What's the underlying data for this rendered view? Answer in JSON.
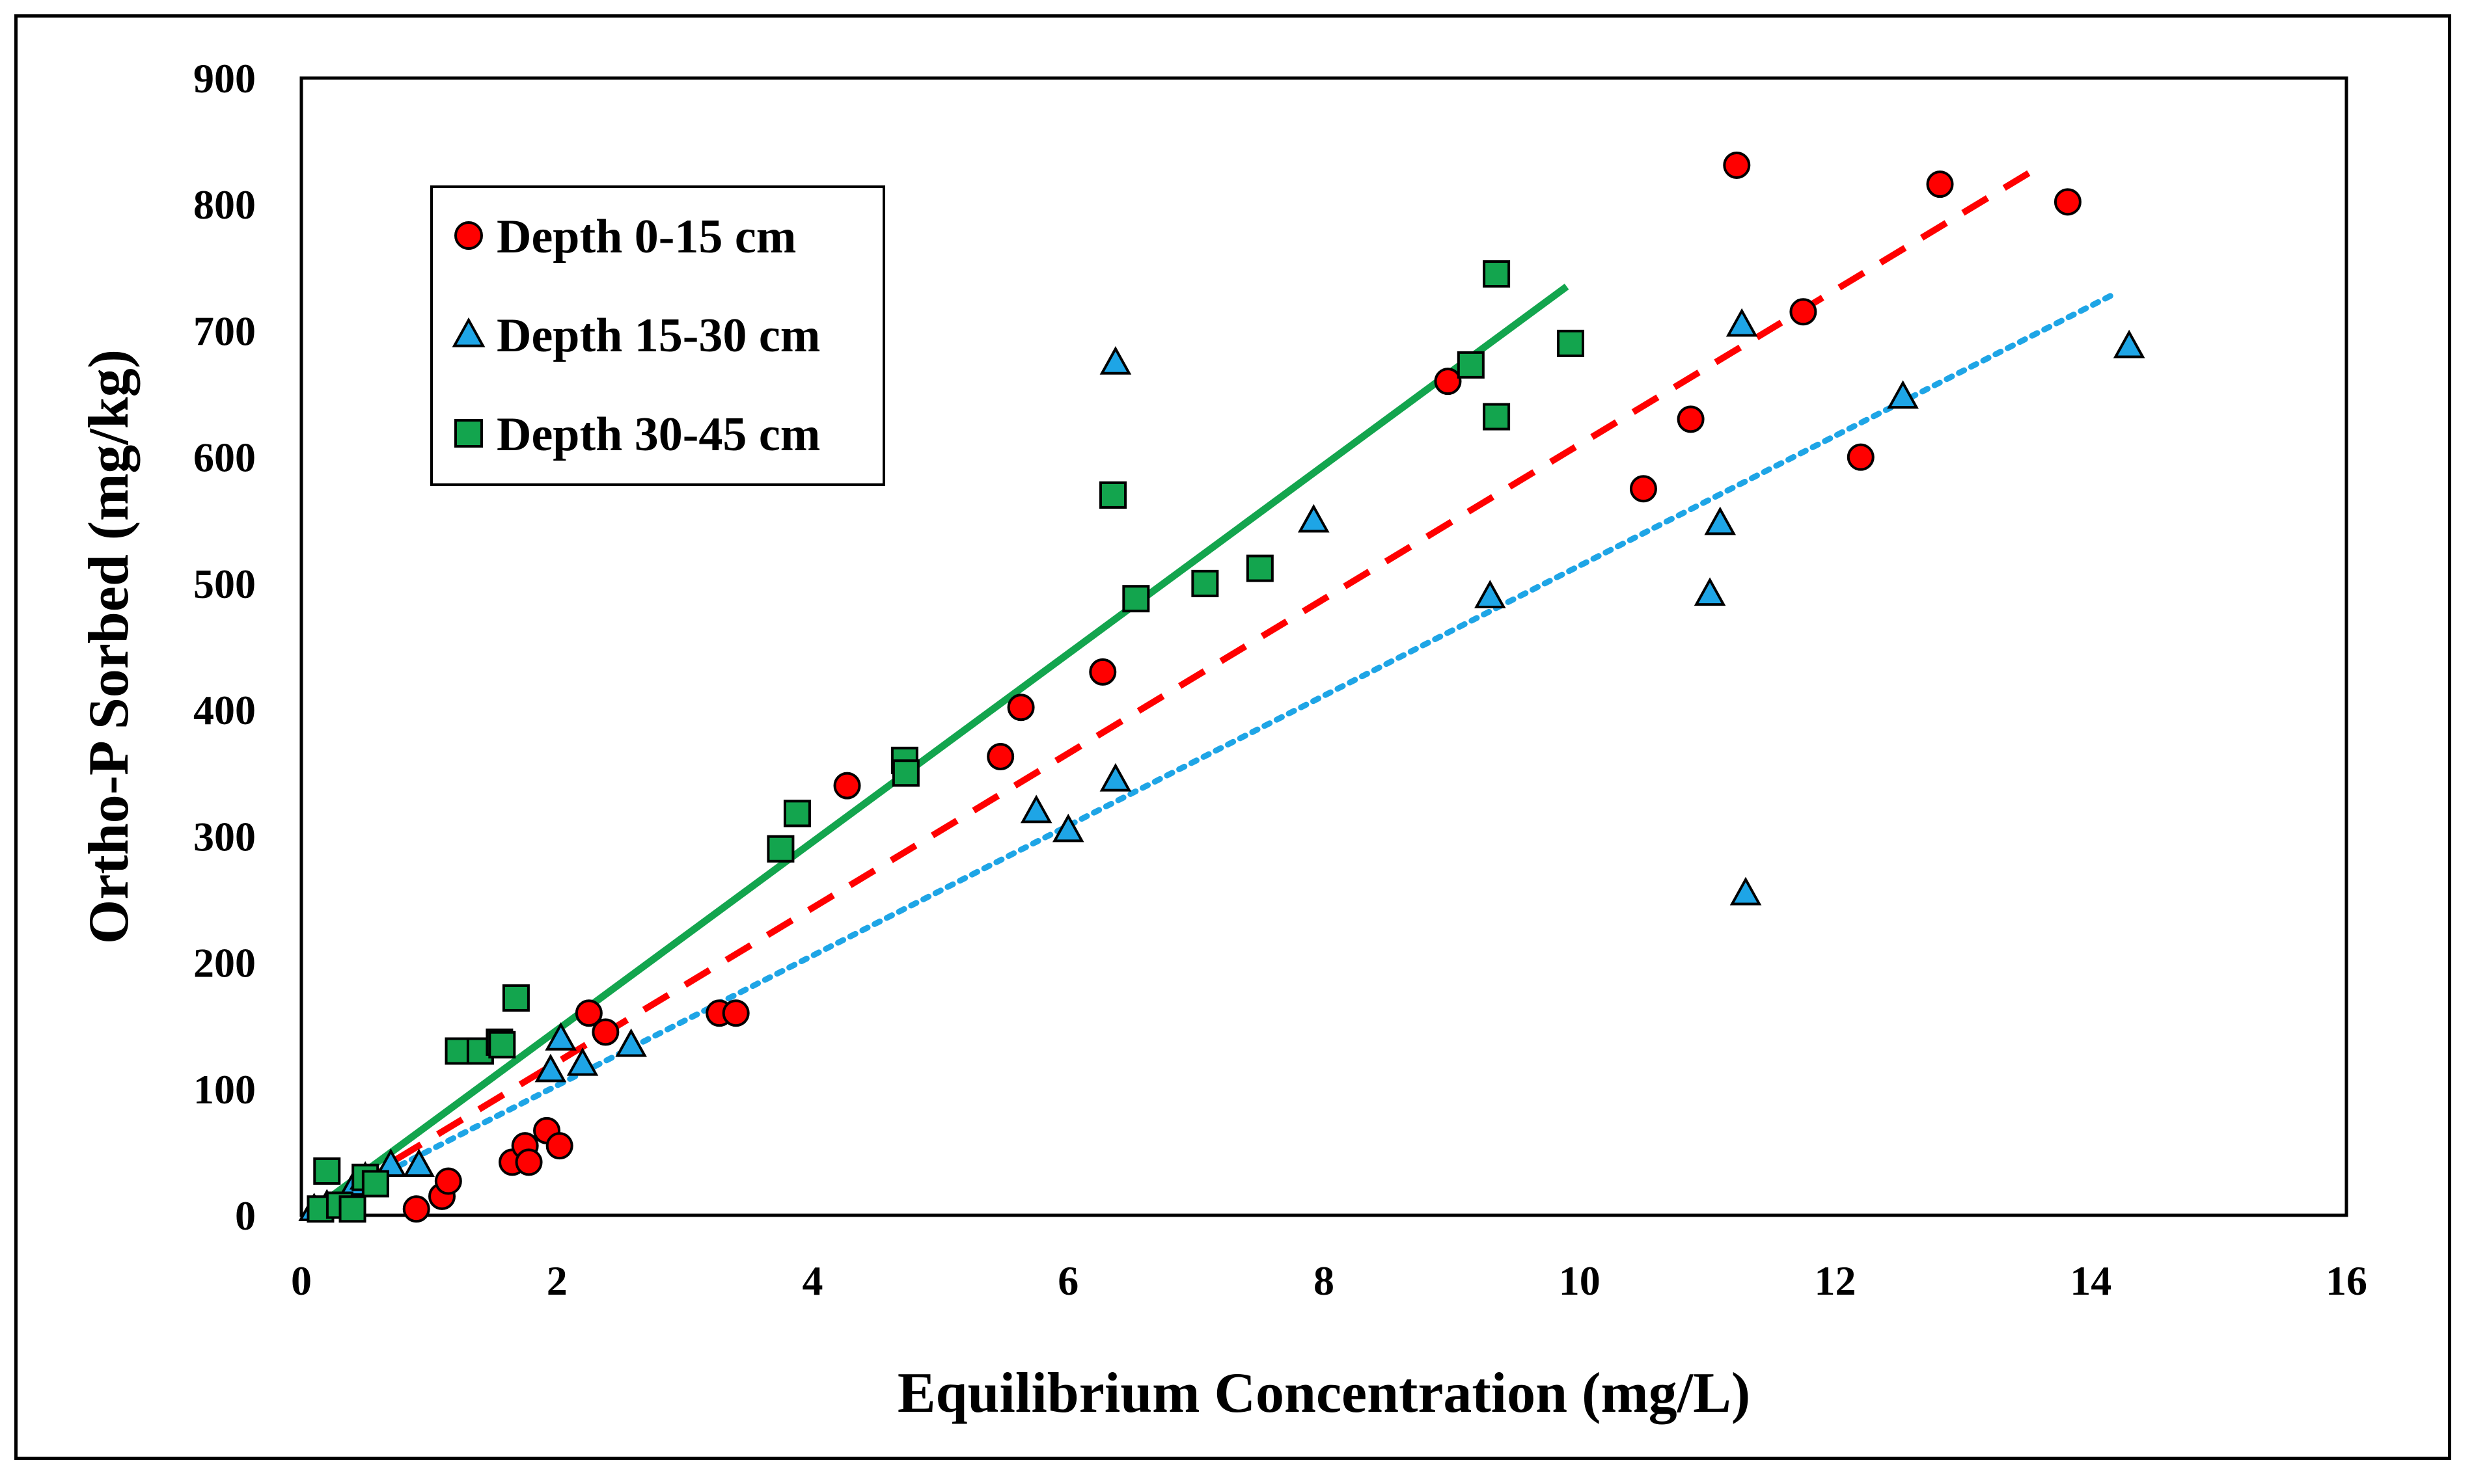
{
  "chart_data": {
    "type": "scatter",
    "title": "",
    "xlabel": "Equilibrium Concentration (mg/L)",
    "ylabel": "Ortho-P Sorbed (mg/kg)",
    "xlim": [
      0,
      16
    ],
    "ylim": [
      0,
      900
    ],
    "xticks": [
      "0",
      "2",
      "4",
      "6",
      "8",
      "10",
      "12",
      "14",
      "16"
    ],
    "yticks": [
      "0",
      "100",
      "200",
      "300",
      "400",
      "500",
      "600",
      "700",
      "800",
      "900"
    ],
    "xtick_values": [
      0,
      2,
      4,
      6,
      8,
      10,
      12,
      14,
      16
    ],
    "ytick_values": [
      0,
      100,
      200,
      300,
      400,
      500,
      600,
      700,
      800,
      900
    ],
    "legend_position": "top-left",
    "series": [
      {
        "name": "Depth 0-15 cm",
        "marker": "circle",
        "color": "#ff0000",
        "trendline": {
          "style": "dashed",
          "color": "#ff0000",
          "x": [
            0.1,
            13.6
          ],
          "y": [
            5,
            830
          ]
        },
        "points": [
          [
            0.9,
            5
          ],
          [
            1.1,
            15
          ],
          [
            1.15,
            27
          ],
          [
            1.65,
            42
          ],
          [
            1.75,
            55
          ],
          [
            1.78,
            42
          ],
          [
            1.92,
            67
          ],
          [
            2.02,
            55
          ],
          [
            2.25,
            160
          ],
          [
            2.38,
            145
          ],
          [
            3.27,
            160
          ],
          [
            3.4,
            160
          ],
          [
            4.27,
            340
          ],
          [
            5.47,
            363
          ],
          [
            5.63,
            402
          ],
          [
            6.27,
            430
          ],
          [
            8.97,
            660
          ],
          [
            10.5,
            575
          ],
          [
            10.87,
            630
          ],
          [
            11.23,
            831
          ],
          [
            11.75,
            715
          ],
          [
            12.2,
            600
          ],
          [
            12.82,
            816
          ],
          [
            13.82,
            802
          ]
        ]
      },
      {
        "name": "Depth 15-30 cm",
        "marker": "triangle",
        "color": "#1ea5e6",
        "trendline": {
          "style": "dotted",
          "color": "#1ea5e6",
          "x": [
            0.1,
            14.2
          ],
          "y": [
            5,
            730
          ]
        },
        "points": [
          [
            0.1,
            5
          ],
          [
            0.2,
            8
          ],
          [
            0.42,
            25
          ],
          [
            0.5,
            30
          ],
          [
            0.7,
            40
          ],
          [
            0.92,
            40
          ],
          [
            1.95,
            115
          ],
          [
            2.03,
            140
          ],
          [
            2.2,
            120
          ],
          [
            2.58,
            135
          ],
          [
            5.75,
            320
          ],
          [
            6.0,
            305
          ],
          [
            6.37,
            345
          ],
          [
            6.37,
            675
          ],
          [
            7.92,
            550
          ],
          [
            9.3,
            490
          ],
          [
            11.02,
            492
          ],
          [
            11.1,
            548
          ],
          [
            11.27,
            705
          ],
          [
            11.3,
            255
          ],
          [
            12.53,
            648
          ],
          [
            14.3,
            688
          ]
        ]
      },
      {
        "name": "Depth 30-45 cm",
        "marker": "square",
        "color": "#13a54e",
        "trendline": {
          "style": "solid",
          "color": "#13a54e",
          "x": [
            0.1,
            9.9
          ],
          "y": [
            5,
            735
          ]
        },
        "points": [
          [
            0.15,
            5
          ],
          [
            0.2,
            35
          ],
          [
            0.3,
            8
          ],
          [
            0.4,
            5
          ],
          [
            0.5,
            30
          ],
          [
            0.58,
            25
          ],
          [
            1.23,
            130
          ],
          [
            1.4,
            130
          ],
          [
            1.55,
            137
          ],
          [
            1.57,
            135
          ],
          [
            1.68,
            172
          ],
          [
            3.75,
            290
          ],
          [
            3.88,
            318
          ],
          [
            4.72,
            360
          ],
          [
            4.73,
            350
          ],
          [
            6.35,
            570
          ],
          [
            6.53,
            488
          ],
          [
            7.07,
            500
          ],
          [
            7.5,
            512
          ],
          [
            9.15,
            673
          ],
          [
            9.35,
            745
          ],
          [
            9.35,
            632
          ],
          [
            9.93,
            690
          ]
        ]
      }
    ]
  }
}
